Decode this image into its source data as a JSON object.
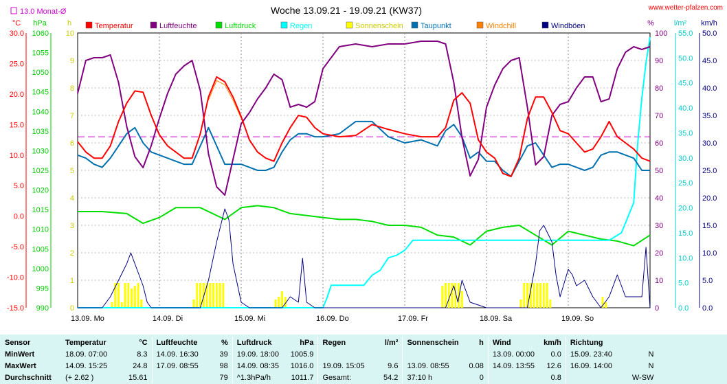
{
  "chart_data": {
    "type": "line",
    "title": "Woche 13.09.21 - 19.09.21 (KW37)",
    "source": "www.wetter-pfalzen.com",
    "monthly_avg_label": "13.0 Monat-Ø",
    "legend": [
      {
        "name": "Temperatur",
        "color": "#ff0000"
      },
      {
        "name": "Luftfeuchte",
        "color": "#800080"
      },
      {
        "name": "Luftdruck",
        "color": "#00dd00"
      },
      {
        "name": "Regen",
        "color": "#00ffff"
      },
      {
        "name": "Sonnenschein",
        "color": "#ffff00"
      },
      {
        "name": "Taupunkt",
        "color": "#0070b0"
      },
      {
        "name": "Windchill",
        "color": "#ff8000"
      },
      {
        "name": "Windböen",
        "color": "#000080"
      }
    ],
    "axes": {
      "temperature": {
        "unit": "°C",
        "min": -15,
        "max": 30,
        "ticks": [
          "30.0",
          "25.0",
          "20.0",
          "15.0",
          "10.0",
          "5.0",
          "0.0",
          "-5.0",
          "-10.0",
          "-15.0"
        ],
        "color": "#ff0000"
      },
      "pressure": {
        "unit": "hPa",
        "min": 990,
        "max": 1060,
        "ticks": [
          "1060",
          "1055",
          "1050",
          "1045",
          "1040",
          "1035",
          "1030",
          "1025",
          "1020",
          "1015",
          "1010",
          "1005",
          "1000",
          "995",
          "990"
        ],
        "color": "#00cc00"
      },
      "sunshine": {
        "unit": "h",
        "min": 0,
        "max": 10,
        "ticks": [
          "10",
          "9",
          "8",
          "7",
          "6",
          "5",
          "4",
          "3",
          "2",
          "1",
          "0"
        ],
        "color": "#cccc00"
      },
      "humidity": {
        "unit": "%",
        "min": 0,
        "max": 100,
        "ticks": [
          "100",
          "90",
          "80",
          "70",
          "60",
          "50",
          "40",
          "30",
          "20",
          "10",
          "0"
        ],
        "color": "#800080"
      },
      "rain": {
        "unit": "l/m²",
        "min": 0,
        "max": 55,
        "ticks": [
          "55.0",
          "50.0",
          "45.0",
          "40.0",
          "35.0",
          "30.0",
          "25.0",
          "20.0",
          "15.0",
          "10.0",
          "5.0",
          "0.0"
        ],
        "color": "#00cccc"
      },
      "wind": {
        "unit": "km/h",
        "min": 0,
        "max": 50,
        "ticks": [
          "50.0",
          "45.0",
          "40.0",
          "35.0",
          "30.0",
          "25.0",
          "20.0",
          "15.0",
          "10.0",
          "5.0",
          "0.0"
        ],
        "color": "#000080"
      }
    },
    "days": [
      "13.09. Mo",
      "14.09. Di",
      "15.09. Mi",
      "16.09. Do",
      "17.09. Fr",
      "18.09. Sa",
      "19.09. So"
    ],
    "x_range": [
      0,
      7
    ],
    "monthly_avg_temperature": 13.0,
    "series": [
      {
        "name": "Temperatur",
        "axis": "temperature",
        "color": "#ff0000",
        "x": [
          0,
          0.1,
          0.2,
          0.3,
          0.4,
          0.5,
          0.6,
          0.7,
          0.8,
          0.9,
          1.0,
          1.1,
          1.2,
          1.3,
          1.4,
          1.5,
          1.6,
          1.7,
          1.8,
          1.9,
          2.0,
          2.1,
          2.2,
          2.3,
          2.4,
          2.5,
          2.6,
          2.7,
          2.8,
          2.9,
          3.0,
          3.2,
          3.4,
          3.6,
          3.8,
          4.0,
          4.2,
          4.4,
          4.5,
          4.6,
          4.7,
          4.8,
          4.9,
          5.0,
          5.1,
          5.2,
          5.3,
          5.4,
          5.5,
          5.6,
          5.7,
          5.8,
          5.9,
          6.0,
          6.1,
          6.2,
          6.3,
          6.4,
          6.5,
          6.6,
          6.7,
          6.8,
          6.9,
          7.0
        ],
        "y": [
          12.2,
          10.5,
          9.5,
          9.5,
          11.5,
          15.5,
          18.5,
          20.5,
          20.3,
          16.5,
          13.3,
          11.5,
          10.5,
          9.5,
          9.5,
          13.5,
          19.5,
          22.8,
          22.0,
          19.5,
          16.3,
          12.5,
          10.5,
          9.5,
          9.0,
          12.0,
          14.5,
          16.5,
          16.2,
          14.5,
          13.5,
          13.0,
          13.2,
          15.0,
          14.2,
          13.5,
          13.0,
          13.0,
          14.5,
          19.0,
          20.2,
          18.5,
          12.5,
          10.5,
          9.5,
          7.0,
          6.5,
          9.5,
          16.0,
          19.5,
          19.5,
          17.0,
          14.0,
          13.5,
          12.0,
          10.5,
          11.0,
          13.0,
          15.5,
          13.0,
          12.0,
          11.0,
          9.5,
          9.0
        ]
      },
      {
        "name": "Taupunkt",
        "axis": "temperature",
        "color": "#0070b0",
        "x": [
          0,
          0.1,
          0.2,
          0.3,
          0.4,
          0.5,
          0.6,
          0.7,
          0.8,
          0.9,
          1.0,
          1.1,
          1.2,
          1.3,
          1.4,
          1.5,
          1.6,
          1.7,
          1.8,
          1.9,
          2.0,
          2.1,
          2.2,
          2.3,
          2.4,
          2.5,
          2.6,
          2.7,
          2.8,
          2.9,
          3.0,
          3.2,
          3.4,
          3.6,
          3.8,
          4.0,
          4.2,
          4.4,
          4.5,
          4.6,
          4.7,
          4.8,
          4.9,
          5.0,
          5.1,
          5.2,
          5.3,
          5.4,
          5.5,
          5.6,
          5.7,
          5.8,
          5.9,
          6.0,
          6.1,
          6.2,
          6.3,
          6.4,
          6.5,
          6.6,
          6.7,
          6.8,
          6.9,
          7.0
        ],
        "y": [
          10.0,
          9.5,
          8.5,
          8.0,
          9.5,
          11.5,
          13.5,
          14.5,
          12.0,
          10.5,
          10.0,
          9.5,
          9.0,
          8.5,
          8.5,
          11.5,
          14.5,
          11.5,
          8.5,
          8.5,
          8.5,
          8.0,
          7.5,
          7.5,
          8.0,
          10.5,
          12.5,
          13.5,
          13.5,
          13.0,
          13.0,
          13.5,
          15.5,
          15.5,
          13.0,
          12.0,
          12.5,
          11.5,
          14.0,
          15.0,
          13.0,
          9.5,
          10.5,
          9.0,
          9.0,
          7.5,
          6.5,
          9.0,
          11.5,
          12.0,
          10.0,
          8.0,
          8.5,
          8.5,
          8.0,
          7.5,
          8.0,
          10.0,
          10.5,
          10.5,
          10.0,
          9.5,
          7.5,
          7.5
        ]
      },
      {
        "name": "Windchill",
        "axis": "temperature",
        "color": "#ff8000",
        "x": [
          1.6,
          1.7,
          1.8,
          1.9,
          2.0
        ],
        "y": [
          19.0,
          22.2,
          21.5,
          19.0,
          16.0
        ]
      },
      {
        "name": "Luftfeuchte",
        "axis": "humidity",
        "color": "#800080",
        "x": [
          0,
          0.1,
          0.2,
          0.3,
          0.4,
          0.5,
          0.6,
          0.7,
          0.8,
          0.9,
          1.0,
          1.1,
          1.2,
          1.3,
          1.4,
          1.5,
          1.6,
          1.7,
          1.8,
          1.9,
          2.0,
          2.1,
          2.2,
          2.3,
          2.4,
          2.5,
          2.6,
          2.7,
          2.8,
          2.9,
          3.0,
          3.2,
          3.4,
          3.6,
          3.8,
          4.0,
          4.2,
          4.4,
          4.5,
          4.6,
          4.7,
          4.8,
          4.9,
          5.0,
          5.1,
          5.2,
          5.3,
          5.4,
          5.5,
          5.6,
          5.7,
          5.8,
          5.9,
          6.0,
          6.1,
          6.2,
          6.3,
          6.4,
          6.5,
          6.6,
          6.7,
          6.8,
          6.9,
          7.0
        ],
        "y": [
          78,
          90,
          91,
          91,
          92,
          82,
          66,
          55,
          51,
          59,
          69,
          78,
          85,
          88,
          90,
          79,
          56,
          44,
          41,
          54,
          67,
          71,
          76,
          80,
          85,
          83,
          73,
          74,
          73,
          75,
          87,
          95,
          96,
          95,
          96,
          96,
          97,
          97,
          96,
          82,
          62,
          48,
          54,
          73,
          81,
          87,
          90,
          91,
          73,
          52,
          55,
          70,
          74,
          75,
          80,
          84,
          84,
          75,
          76,
          87,
          93,
          95,
          94,
          95
        ]
      },
      {
        "name": "Luftdruck",
        "axis": "pressure",
        "color": "#00dd00",
        "x": [
          0,
          0.3,
          0.6,
          0.8,
          1.0,
          1.2,
          1.5,
          1.8,
          2.0,
          2.2,
          2.4,
          2.6,
          2.8,
          3.0,
          3.2,
          3.4,
          3.6,
          3.8,
          4.0,
          4.2,
          4.4,
          4.6,
          4.8,
          5.0,
          5.2,
          5.4,
          5.6,
          5.8,
          6.0,
          6.2,
          6.4,
          6.6,
          6.8,
          7.0
        ],
        "y": [
          1014.5,
          1014.5,
          1014.0,
          1011.5,
          1013.0,
          1015.5,
          1015.5,
          1012.5,
          1015.5,
          1016.0,
          1015.5,
          1014.0,
          1013.5,
          1013.0,
          1012.5,
          1012.5,
          1012.0,
          1011.0,
          1011.0,
          1010.5,
          1008.5,
          1008.0,
          1006.0,
          1009.5,
          1010.5,
          1011.0,
          1008.5,
          1006.0,
          1009.5,
          1008.5,
          1007.5,
          1007.0,
          1005.8,
          1008.5
        ]
      },
      {
        "name": "Regen",
        "axis": "rain",
        "color": "#00ffff",
        "x": [
          0,
          3.0,
          3.05,
          3.1,
          3.5,
          3.6,
          3.7,
          3.8,
          3.9,
          4.0,
          4.1,
          4.3,
          5.0,
          6.4,
          6.5,
          6.6,
          6.65,
          6.8,
          6.85,
          6.9,
          6.95,
          7.0
        ],
        "y": [
          0,
          0,
          2.0,
          4.5,
          4.5,
          6.5,
          7.5,
          10.0,
          10.5,
          11.5,
          13.5,
          13.5,
          13.5,
          13.5,
          13.5,
          14.5,
          15.0,
          21.0,
          33.0,
          42.0,
          49.0,
          54.2
        ]
      },
      {
        "name": "Windböen",
        "axis": "wind",
        "color": "#000080",
        "x": [
          0,
          0.2,
          0.3,
          0.4,
          0.5,
          0.6,
          0.65,
          0.7,
          0.75,
          0.8,
          0.85,
          0.9,
          1.0,
          1.1,
          1.5,
          1.6,
          1.7,
          1.8,
          1.85,
          1.9,
          2.0,
          2.1,
          2.3,
          2.4,
          2.5,
          2.6,
          2.7,
          2.75,
          2.8,
          2.9,
          3.0,
          3.5,
          4.0,
          4.3,
          4.4,
          4.5,
          4.6,
          4.65,
          4.7,
          4.8,
          5.0,
          5.2,
          5.4,
          5.5,
          5.6,
          5.65,
          5.7,
          5.8,
          5.85,
          5.9,
          6.0,
          6.05,
          6.1,
          6.2,
          6.3,
          6.4,
          6.5,
          6.6,
          6.7,
          6.8,
          6.9,
          6.95,
          7.0
        ],
        "y": [
          0,
          0,
          0,
          2,
          5,
          8,
          10,
          8,
          6,
          4,
          1,
          0,
          0,
          0,
          0,
          5,
          12,
          18,
          16,
          8,
          1,
          0,
          0,
          0,
          0,
          2,
          1,
          9,
          1,
          0,
          0,
          0,
          0,
          0,
          0,
          0,
          4,
          1,
          5,
          1,
          0,
          0,
          0,
          0,
          8,
          14,
          15,
          12,
          6,
          2,
          7,
          6,
          4,
          5,
          2,
          0,
          2,
          6,
          2,
          2,
          2,
          11,
          0
        ]
      }
    ],
    "bars": {
      "name": "Sonnenschein",
      "axis": "sunshine",
      "color": "#ffff00",
      "x": [
        0.42,
        0.46,
        0.5,
        0.54,
        0.58,
        0.62,
        0.66,
        0.7,
        0.74,
        0.78,
        1.42,
        1.46,
        1.5,
        1.54,
        1.58,
        1.62,
        1.66,
        1.7,
        1.74,
        1.78,
        2.42,
        2.46,
        2.5,
        2.54,
        4.46,
        4.5,
        4.54,
        4.58,
        4.62,
        4.66,
        4.7,
        5.42,
        5.46,
        5.5,
        5.54,
        5.58,
        5.62,
        5.66,
        5.7,
        5.74,
        5.78,
        6.42,
        6.46
      ],
      "values": [
        0.2,
        0.9,
        0.9,
        0.2,
        0.9,
        0.9,
        0.7,
        0.8,
        0.9,
        0.3,
        0.3,
        0.9,
        0.9,
        0.9,
        0.9,
        0.9,
        0.9,
        0.9,
        0.9,
        0.9,
        0.3,
        0.4,
        0.6,
        0.4,
        0.8,
        0.9,
        0.9,
        0.9,
        0.9,
        0.9,
        0.6,
        0.3,
        0.9,
        0.9,
        0.9,
        0.9,
        0.9,
        0.9,
        0.9,
        0.9,
        0.3,
        0.4,
        0.2
      ]
    }
  },
  "stats": {
    "headers": [
      {
        "name": "Sensor",
        "unit": ""
      },
      {
        "name": "Temperatur",
        "unit": "°C"
      },
      {
        "name": "Luftfeuchte",
        "unit": "%"
      },
      {
        "name": "Luftdruck",
        "unit": "hPa"
      },
      {
        "name": "Regen",
        "unit": "l/m²"
      },
      {
        "name": "Sonnenschein",
        "unit": "h"
      },
      {
        "name": "Wind",
        "unit": "km/h"
      },
      {
        "name": "Richtung",
        "unit": ""
      }
    ],
    "rows": [
      {
        "label": "MinWert",
        "cells": [
          [
            "18.09.  07:00",
            "8.3"
          ],
          [
            "14.09.  16:30",
            "39"
          ],
          [
            "19.09.  18:00",
            "1005.9"
          ],
          [
            "",
            ""
          ],
          [
            "",
            ""
          ],
          [
            "13.09.  00:00",
            "0.0"
          ],
          [
            "15.09.  23:40",
            "N"
          ]
        ]
      },
      {
        "label": "MaxWert",
        "cells": [
          [
            "14.09.  15:25",
            "24.8"
          ],
          [
            "17.09.  08:55",
            "98"
          ],
          [
            "14.09.  08:35",
            "1016.0"
          ],
          [
            "19.09.  15:05",
            "9.6"
          ],
          [
            "13.09.  08:55",
            "0.08"
          ],
          [
            "14.09.  13:55",
            "12.6"
          ],
          [
            "16.09.  14:00",
            "N"
          ]
        ]
      },
      {
        "label": "Durchschnitt",
        "cells": [
          [
            "(+ 2.62 )",
            "15.61"
          ],
          [
            "",
            "79"
          ],
          [
            "^1.3hPa/h",
            "1011.7"
          ],
          [
            "Gesamt:",
            "54.2"
          ],
          [
            "37:10 h",
            "0"
          ],
          [
            "",
            "0.8"
          ],
          [
            "",
            "W-SW"
          ]
        ]
      }
    ]
  }
}
